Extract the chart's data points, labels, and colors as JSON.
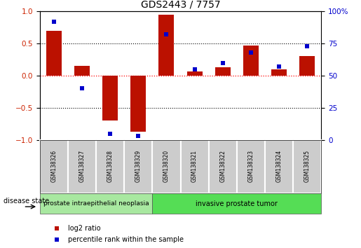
{
  "title": "GDS2443 / 7757",
  "samples": [
    "GSM138326",
    "GSM138327",
    "GSM138328",
    "GSM138329",
    "GSM138320",
    "GSM138321",
    "GSM138322",
    "GSM138323",
    "GSM138324",
    "GSM138325"
  ],
  "log2_ratio": [
    0.7,
    0.15,
    -0.7,
    -0.87,
    0.95,
    0.07,
    0.13,
    0.47,
    0.1,
    0.3
  ],
  "percentile_rank": [
    92,
    40,
    5,
    3,
    82,
    55,
    60,
    68,
    57,
    73
  ],
  "groups": [
    {
      "label": "prostate intraepithelial neoplasia",
      "start": 0,
      "end": 4,
      "color": "#a8e8a0"
    },
    {
      "label": "invasive prostate tumor",
      "start": 4,
      "end": 10,
      "color": "#55dd55"
    }
  ],
  "bar_color": "#bb1100",
  "dot_color": "#0000cc",
  "ylim_left": [
    -1,
    1
  ],
  "ylim_right": [
    0,
    100
  ],
  "yticks_left": [
    -1,
    -0.5,
    0,
    0.5,
    1
  ],
  "yticks_right": [
    0,
    25,
    50,
    75,
    100
  ],
  "legend_items": [
    {
      "label": "log2 ratio",
      "color": "#bb1100"
    },
    {
      "label": "percentile rank within the sample",
      "color": "#0000cc"
    }
  ],
  "disease_state_label": "disease state",
  "sample_box_color": "#cccccc",
  "bar_width": 0.55,
  "dot_size": 22,
  "tick_label_color_left": "#cc2200",
  "tick_label_color_right": "#0000cc",
  "figsize": [
    5.15,
    3.54
  ],
  "dpi": 100
}
